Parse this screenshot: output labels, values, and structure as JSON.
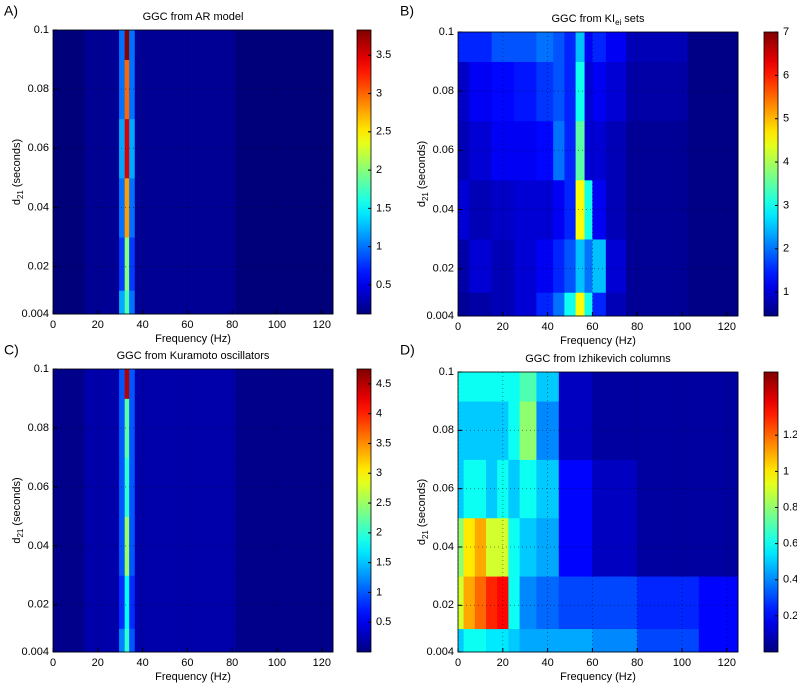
{
  "chart_data": [
    {
      "type": "heatmap",
      "label": "A)",
      "title": "GGC from AR model",
      "xlabel": "Frequency (Hz)",
      "ylabel": "d",
      "ylabel_subscript": "21",
      "ylabel_suffix": "(seconds)",
      "x": [
        0,
        28,
        31,
        33,
        35,
        38,
        125
      ],
      "y": [
        0.004,
        0.02,
        0.04,
        0.06,
        0.08,
        0.1
      ],
      "z": [
        [
          0.1,
          0.2,
          1.2,
          1.8,
          1.0,
          0.2,
          0.1
        ],
        [
          0.1,
          0.2,
          0.8,
          2.0,
          0.8,
          0.2,
          0.1
        ],
        [
          0.1,
          0.2,
          1.0,
          2.8,
          1.0,
          0.2,
          0.1
        ],
        [
          0.1,
          0.2,
          1.2,
          3.5,
          1.2,
          0.2,
          0.1
        ],
        [
          0.1,
          0.2,
          1.0,
          3.0,
          1.0,
          0.2,
          0.1
        ],
        [
          0.1,
          0.2,
          1.0,
          3.8,
          1.0,
          0.2,
          0.1
        ]
      ],
      "xlim": [
        0,
        125
      ],
      "xticks": [
        0,
        20,
        40,
        60,
        80,
        100,
        120
      ],
      "ylim": [
        0.004,
        0.1
      ],
      "yticks": [
        0.004,
        0.02,
        0.04,
        0.06,
        0.08,
        0.1
      ],
      "clim": [
        0.12,
        3.83
      ],
      "cticks": [
        0.5,
        1,
        1.5,
        2,
        2.5,
        3,
        3.5
      ],
      "colormap": "jet",
      "grid": true
    },
    {
      "type": "heatmap",
      "label": "B)",
      "title": "GGC from KI",
      "title_subscript": "ei",
      "title_suffix": "sets",
      "xlabel": "Frequency (Hz)",
      "ylabel": "d",
      "ylabel_subscript": "21",
      "ylabel_suffix": "(seconds)",
      "x": [
        0,
        10,
        20,
        30,
        40,
        45,
        50,
        55,
        58,
        62,
        70,
        80,
        125
      ],
      "y": [
        0.004,
        0.02,
        0.04,
        0.06,
        0.08,
        0.1
      ],
      "z": [
        [
          0.6,
          0.7,
          0.8,
          1.0,
          1.5,
          2.0,
          3.0,
          4.5,
          3.0,
          1.5,
          0.8,
          0.6,
          0.5
        ],
        [
          0.7,
          1.0,
          0.8,
          1.0,
          1.2,
          1.5,
          1.8,
          2.5,
          2.0,
          2.5,
          1.0,
          0.6,
          0.5
        ],
        [
          1.0,
          0.8,
          0.9,
          1.0,
          1.0,
          1.2,
          1.5,
          4.5,
          3.0,
          1.2,
          0.8,
          0.6,
          0.5
        ],
        [
          0.8,
          1.0,
          1.2,
          1.2,
          1.3,
          2.0,
          1.5,
          3.5,
          1.0,
          1.0,
          0.8,
          0.6,
          0.5
        ],
        [
          0.9,
          1.2,
          1.3,
          1.4,
          1.6,
          1.8,
          1.5,
          3.0,
          1.0,
          1.2,
          1.0,
          0.7,
          0.5
        ],
        [
          1.5,
          1.5,
          1.8,
          1.8,
          2.0,
          1.8,
          1.5,
          2.5,
          1.2,
          1.5,
          1.2,
          0.8,
          0.5
        ]
      ],
      "xlim": [
        0,
        125
      ],
      "xticks": [
        0,
        20,
        40,
        60,
        80,
        100,
        120
      ],
      "ylim": [
        0.004,
        0.1
      ],
      "yticks": [
        0.004,
        0.02,
        0.04,
        0.06,
        0.08,
        0.1
      ],
      "clim": [
        0.45,
        7
      ],
      "cticks": [
        1,
        2,
        3,
        4,
        5,
        6,
        7
      ],
      "colormap": "jet",
      "grid": true
    },
    {
      "type": "heatmap",
      "label": "C)",
      "title": "GGC from Kuramoto oscillators",
      "xlabel": "Frequency (Hz)",
      "ylabel": "d",
      "ylabel_subscript": "21",
      "ylabel_suffix": "(seconds)",
      "x": [
        0,
        28,
        31,
        33,
        35,
        38,
        125
      ],
      "y": [
        0.004,
        0.02,
        0.04,
        0.06,
        0.08,
        0.1
      ],
      "z": [
        [
          0.05,
          0.2,
          1.2,
          2.0,
          1.0,
          0.2,
          0.05
        ],
        [
          0.05,
          0.2,
          0.8,
          1.8,
          0.8,
          0.2,
          0.05
        ],
        [
          0.05,
          0.2,
          1.0,
          2.5,
          1.0,
          0.2,
          0.05
        ],
        [
          0.05,
          0.2,
          1.0,
          2.0,
          1.0,
          0.2,
          0.05
        ],
        [
          0.05,
          0.2,
          1.0,
          2.2,
          1.0,
          0.2,
          0.05
        ],
        [
          0.05,
          0.2,
          1.0,
          4.5,
          1.0,
          0.2,
          0.05
        ]
      ],
      "xlim": [
        0,
        125
      ],
      "xticks": [
        0,
        20,
        40,
        60,
        80,
        100,
        120
      ],
      "ylim": [
        0.004,
        0.1
      ],
      "yticks": [
        0.004,
        0.02,
        0.04,
        0.06,
        0.08,
        0.1
      ],
      "clim": [
        0,
        4.75
      ],
      "cticks": [
        0.5,
        1,
        1.5,
        2,
        2.5,
        3,
        3.5,
        4,
        4.5
      ],
      "colormap": "jet",
      "grid": true
    },
    {
      "type": "heatmap",
      "label": "D)",
      "title": "GGC from Izhikevich columns",
      "xlabel": "Frequency (Hz)",
      "ylabel": "d",
      "ylabel_subscript": "21",
      "ylabel_suffix": "(seconds)",
      "x": [
        0,
        5,
        10,
        15,
        20,
        25,
        30,
        40,
        50,
        70,
        90,
        125
      ],
      "y": [
        0.004,
        0.02,
        0.04,
        0.06,
        0.08,
        0.1
      ],
      "z": [
        [
          0.5,
          0.6,
          0.6,
          0.55,
          0.55,
          0.5,
          0.45,
          0.45,
          0.45,
          0.4,
          0.3,
          0.2
        ],
        [
          0.9,
          1.1,
          1.2,
          1.3,
          1.35,
          0.6,
          0.4,
          0.35,
          0.3,
          0.3,
          0.25,
          0.2
        ],
        [
          0.8,
          1.0,
          1.1,
          0.9,
          0.9,
          0.6,
          0.5,
          0.45,
          0.2,
          0.1,
          0.05,
          0.05
        ],
        [
          0.5,
          0.6,
          0.6,
          0.5,
          0.6,
          0.5,
          0.6,
          0.5,
          0.2,
          0.1,
          0.05,
          0.05
        ],
        [
          0.5,
          0.5,
          0.5,
          0.5,
          0.5,
          0.6,
          0.8,
          0.4,
          0.1,
          0.05,
          0.05,
          0.05
        ],
        [
          0.6,
          0.6,
          0.6,
          0.6,
          0.6,
          0.6,
          0.7,
          0.5,
          0.1,
          0.05,
          0.05,
          0.05
        ]
      ],
      "xlim": [
        0,
        125
      ],
      "xticks": [
        0,
        20,
        40,
        60,
        80,
        100,
        120
      ],
      "ylim": [
        0.004,
        0.1
      ],
      "yticks": [
        0.004,
        0.02,
        0.04,
        0.06,
        0.08,
        0.1
      ],
      "clim": [
        0,
        1.55
      ],
      "cticks": [
        0.2,
        0.4,
        0.6,
        0.8,
        1,
        1.2
      ],
      "colormap": "jet",
      "grid": true
    }
  ]
}
